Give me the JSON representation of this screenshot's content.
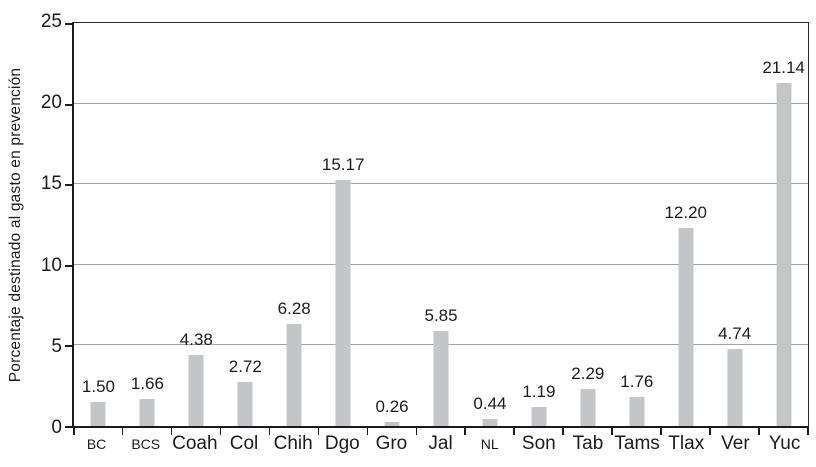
{
  "chart_data": {
    "type": "bar",
    "title": "",
    "xlabel": "",
    "ylabel": "Porcentaje destinado al gasto en prevención",
    "ylim": [
      0,
      25
    ],
    "yticks": [
      0,
      5,
      10,
      15,
      20,
      25
    ],
    "grid": "horizontal",
    "legend_position": "none",
    "categories": [
      "BC",
      "BCS",
      "Coah",
      "Col",
      "Chih",
      "Dgo",
      "Gro",
      "Jal",
      "NL",
      "Son",
      "Tab",
      "Tams",
      "Tlax",
      "Ver",
      "Yuc"
    ],
    "values": [
      1.5,
      1.66,
      4.38,
      2.72,
      6.28,
      15.17,
      0.26,
      5.85,
      0.44,
      1.19,
      2.29,
      1.76,
      12.2,
      4.74,
      21.14
    ],
    "value_labels": [
      "1.50",
      "1.66",
      "4.38",
      "2.72",
      "6.28",
      "15.17",
      "0.26",
      "5.85",
      "0.44",
      "1.19",
      "2.29",
      "1.76",
      "12.20",
      "4.74",
      "21.14"
    ],
    "small_category_labels": [
      "BC",
      "BCS",
      "NL"
    ]
  },
  "colors": {
    "bar": "#c4c5c7",
    "gridline": "#a3a3a3",
    "axis": "#1d1a1b",
    "text": "#1d1a1b",
    "background": "#ffffff"
  }
}
